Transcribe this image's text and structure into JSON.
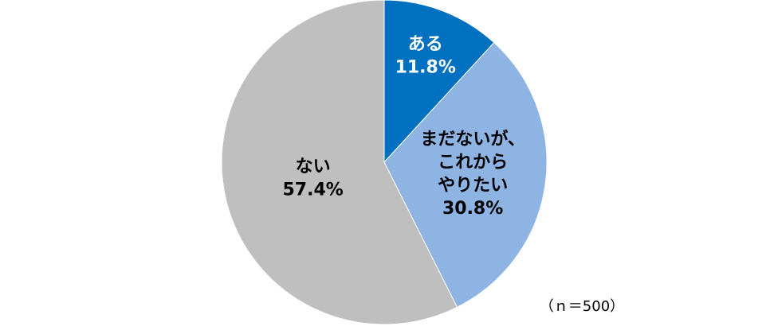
{
  "chart_data": {
    "type": "pie",
    "categories": [
      "ある",
      "まだないが、\nこれから\nやりたい",
      "ない"
    ],
    "values": [
      11.8,
      30.8,
      57.4
    ],
    "value_labels": [
      "11.8%",
      "30.8%",
      "57.4%"
    ],
    "colors": [
      "#0070c0",
      "#8eb4e3",
      "#bfbfbf"
    ],
    "label_colors": [
      "#ffffff",
      "#000000",
      "#000000"
    ],
    "note": "（ｎ＝500）"
  }
}
